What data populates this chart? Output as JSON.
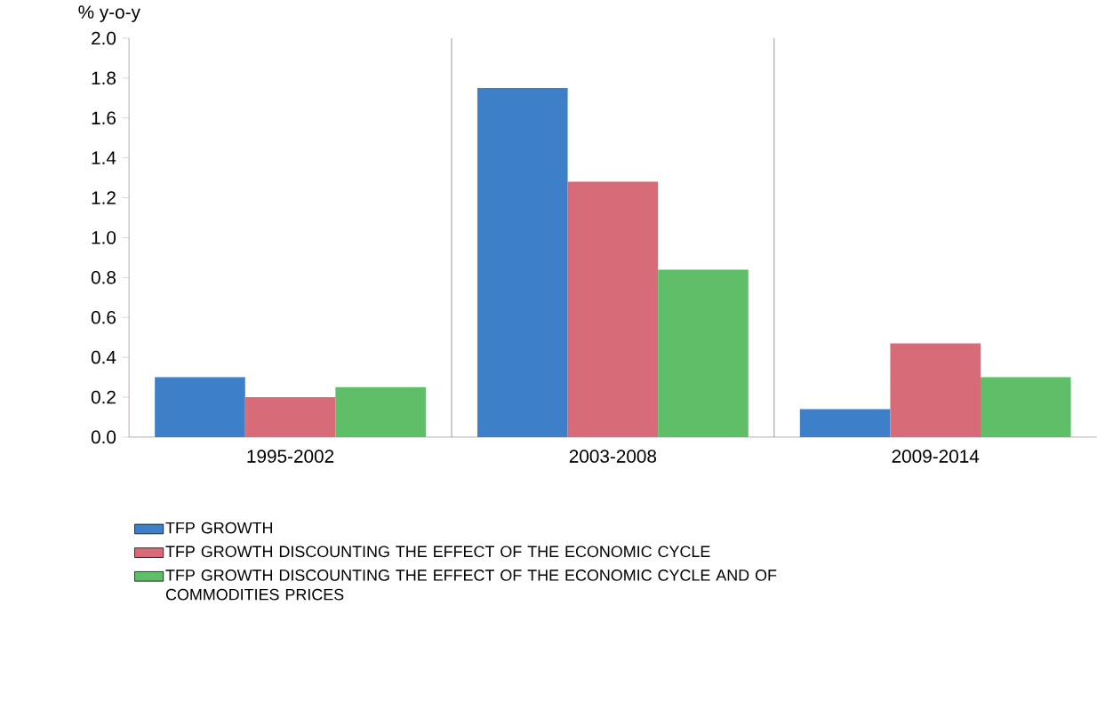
{
  "chart_data": {
    "type": "bar",
    "ylabel": "% y-o-y",
    "categories": [
      "1995-2002",
      "2003-2008",
      "2009-2014"
    ],
    "series": [
      {
        "name": "TFP GROWTH",
        "color": "#3d7fc8",
        "values": [
          0.3,
          1.75,
          0.14
        ]
      },
      {
        "name": "TFP GROWTH DISCOUNTING THE EFFECT OF THE ECONOMIC CYCLE",
        "color": "#d86b78",
        "values": [
          0.2,
          1.28,
          0.47
        ]
      },
      {
        "name": "TFP GROWTH DISCOUNTING THE EFFECT OF THE ECONOMIC CYCLE AND OF COMMODITIES PRICES",
        "color": "#5fbf69",
        "values": [
          0.25,
          0.84,
          0.3
        ]
      }
    ],
    "ylim": [
      0,
      2.0
    ],
    "yticks": [
      {
        "value": 0,
        "label": "0.0"
      },
      {
        "value": 0.2,
        "label": "0.2"
      },
      {
        "value": 0.4,
        "label": "0.4"
      },
      {
        "value": 0.6,
        "label": "0.6"
      },
      {
        "value": 0.8,
        "label": "0.8"
      },
      {
        "value": 1.0,
        "label": "1.0"
      },
      {
        "value": 1.2,
        "label": "1.2"
      },
      {
        "value": 1.4,
        "label": "1.4"
      },
      {
        "value": 1.6,
        "label": "1.6"
      },
      {
        "value": 1.8,
        "label": "1.8"
      },
      {
        "value": 2.0,
        "label": "2.0"
      }
    ],
    "grid": "x",
    "legend": "bottom"
  }
}
